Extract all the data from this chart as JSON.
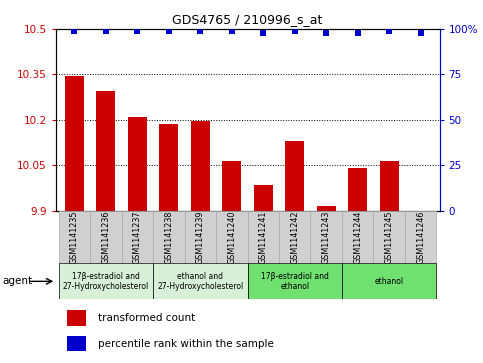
{
  "title": "GDS4765 / 210996_s_at",
  "samples": [
    "GSM1141235",
    "GSM1141236",
    "GSM1141237",
    "GSM1141238",
    "GSM1141239",
    "GSM1141240",
    "GSM1141241",
    "GSM1141242",
    "GSM1141243",
    "GSM1141244",
    "GSM1141245",
    "GSM1141246"
  ],
  "bar_values": [
    10.345,
    10.295,
    10.21,
    10.185,
    10.197,
    10.065,
    9.985,
    10.13,
    9.915,
    10.04,
    10.065,
    9.9
  ],
  "percentile_values": [
    99,
    99,
    99,
    99,
    99,
    99,
    98,
    99,
    98,
    98,
    99,
    98
  ],
  "bar_color": "#cc0000",
  "percentile_color": "#0000cc",
  "ymin": 9.9,
  "ymax": 10.5,
  "yticks": [
    9.9,
    10.05,
    10.2,
    10.35,
    10.5
  ],
  "ytick_labels": [
    "9.9",
    "10.05",
    "10.2",
    "10.35",
    "10.5"
  ],
  "y2min": 0,
  "y2max": 100,
  "y2ticks": [
    0,
    25,
    50,
    75,
    100
  ],
  "y2tick_labels": [
    "0",
    "25",
    "50",
    "75",
    "100%"
  ],
  "group_labels": [
    "17β-estradiol and\n27-Hydroxycholesterol",
    "ethanol and\n27-Hydroxycholesterol",
    "17β-estradiol and\nethanol",
    "ethanol"
  ],
  "group_ranges": [
    [
      0,
      3
    ],
    [
      3,
      6
    ],
    [
      6,
      9
    ],
    [
      9,
      12
    ]
  ],
  "group_colors": [
    "#d8f0d8",
    "#d8f0d8",
    "#70e070",
    "#70e070"
  ],
  "legend_bar_label": "transformed count",
  "legend_pct_label": "percentile rank within the sample",
  "sample_bg_color": "#d0d0d0",
  "sample_border_color": "#aaaaaa",
  "plot_bg": "#ffffff",
  "grid_color": "#000000",
  "agent_label": "agent"
}
